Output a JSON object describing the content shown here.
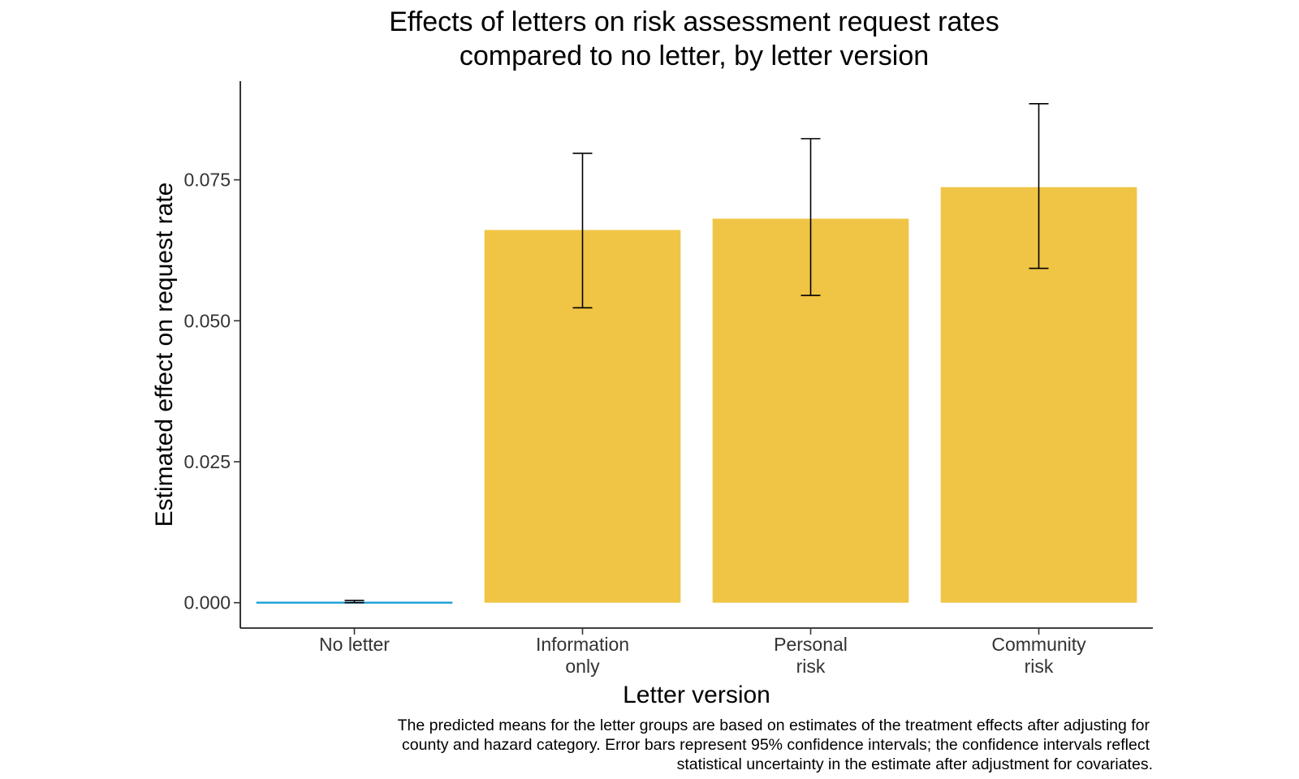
{
  "chart_data": {
    "type": "bar",
    "title": [
      "Effects of letters on risk assessment request rates",
      "compared to no letter, by letter version"
    ],
    "xlabel": "Letter version",
    "ylabel": "Estimated effect on request rate",
    "categories": [
      [
        "No letter"
      ],
      [
        "Information",
        "only"
      ],
      [
        "Personal",
        "risk"
      ],
      [
        "Community",
        "risk"
      ]
    ],
    "values": [
      0.0,
      0.0661,
      0.0681,
      0.0737
    ],
    "ci_lower": [
      0.0,
      0.0523,
      0.0545,
      0.0593
    ],
    "ci_upper": [
      0.0004,
      0.0797,
      0.0823,
      0.0885
    ],
    "bar_colors": [
      "#1a9fd6",
      "#f0c445",
      "#f0c445",
      "#f0c445"
    ],
    "yticks": [
      0.0,
      0.025,
      0.05,
      0.075
    ],
    "ytick_labels": [
      "0.000",
      "0.025",
      "0.050",
      "0.075"
    ],
    "ylim": [
      -0.0045,
      0.0925
    ],
    "grid": false,
    "caption": [
      "The predicted means for the letter groups are based on estimates of the treatment effects after adjusting for",
      "county and hazard category. Error bars represent 95% confidence intervals; the confidence intervals reflect",
      "statistical uncertainty in the estimate after adjustment for covariates."
    ]
  }
}
